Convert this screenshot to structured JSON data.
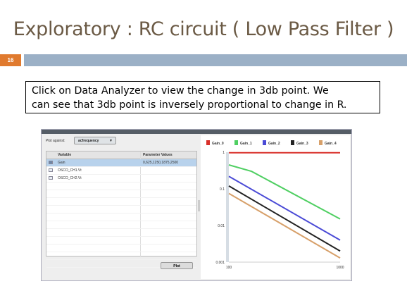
{
  "slide": {
    "title": "Exploratory : RC circuit ( Low Pass Filter )",
    "number": "16",
    "caption_line1": "Click on Data Analyzer to view the change in 3db point. We",
    "caption_line2": "can see that 3db point is inversely proportional to change in R."
  },
  "analyzer": {
    "plot_against_label": "Plot against:",
    "plot_against_value": "acfrequency",
    "columns": {
      "variable": "Variable",
      "parameter_values": "Parameter Values"
    },
    "rows": [
      {
        "variable": "Gain",
        "parameter_values": "0,625,1250,1875,2500",
        "checked": true,
        "selected": true
      },
      {
        "variable": "OSCO_CH1.Vt",
        "parameter_values": "",
        "checked": false,
        "selected": false
      },
      {
        "variable": "OSCO_CH2.Vt",
        "parameter_values": "",
        "checked": false,
        "selected": false
      }
    ],
    "plot_button": "Plot"
  },
  "chart_data": {
    "type": "line",
    "title": "",
    "xlabel": "",
    "ylabel": "",
    "x_scale": "log",
    "y_scale": "log",
    "xlim": [
      100,
      1000
    ],
    "ylim": [
      0.001,
      1
    ],
    "x_ticks": [
      "100",
      "1000"
    ],
    "y_ticks": [
      "1",
      "0.1",
      "0.01",
      "0.001"
    ],
    "legend_position": "top",
    "series": [
      {
        "name": "Gain_0",
        "color": "#d9302a",
        "x": [
          100,
          1000
        ],
        "y": [
          0.97,
          0.97
        ]
      },
      {
        "name": "Gain_1",
        "color": "#4fcf62",
        "x": [
          100,
          160,
          1000
        ],
        "y": [
          0.45,
          0.3,
          0.015
        ]
      },
      {
        "name": "Gain_2",
        "color": "#4a4ad6",
        "x": [
          100,
          1000
        ],
        "y": [
          0.22,
          0.004
        ]
      },
      {
        "name": "Gain_3",
        "color": "#222222",
        "x": [
          100,
          1000
        ],
        "y": [
          0.12,
          0.002
        ]
      },
      {
        "name": "Gain_4",
        "color": "#d7a06a",
        "x": [
          100,
          1000
        ],
        "y": [
          0.075,
          0.0013
        ]
      }
    ]
  }
}
